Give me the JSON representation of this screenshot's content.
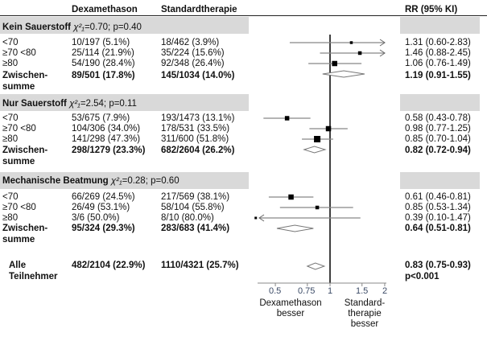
{
  "header": {
    "col_dex": "Dexamethason",
    "col_std": "Standardtherapie",
    "col_rr": "RR (95% KI)"
  },
  "groups": [
    {
      "title": "Kein Sauerstoff",
      "stat_chi": "χ²₁",
      "stat_rest": "=0.70; p=0.40",
      "rows": [
        {
          "label": "<70",
          "dex": "10/197 (5.1%)",
          "std": "18/462 (3.9%)",
          "rr": "1.31 (0.60-2.83)"
        },
        {
          "label": "≥70 <80",
          "dex": "25/114 (21.9%)",
          "std": "35/224 (15.6%)",
          "rr": "1.46 (0.88-2.45)"
        },
        {
          "label": "≥80",
          "dex": "54/190 (28.4%)",
          "std": "92/348 (26.4%)",
          "rr": "1.06 (0.76-1.49)"
        }
      ],
      "subtotal": {
        "label1": "Zwischen-",
        "label2": "summe",
        "dex": "89/501 (17.8%)",
        "std": "145/1034 (14.0%)",
        "rr": "1.19 (0.91-1.55)"
      }
    },
    {
      "title": "Nur Sauerstoff",
      "stat_chi": "χ²₁",
      "stat_rest": "=2.54; p=0.11",
      "rows": [
        {
          "label": "<70",
          "dex": "53/675 (7.9%)",
          "std": "193/1473 (13.1%)",
          "rr": "0.58 (0.43-0.78)"
        },
        {
          "label": "≥70 <80",
          "dex": "104/306 (34.0%)",
          "std": "178/531 (33.5%)",
          "rr": "0.98 (0.77-1.25)"
        },
        {
          "label": "≥80",
          "dex": "141/298 (47.3%)",
          "std": "311/600 (51.8%)",
          "rr": "0.85 (0.70-1.04)"
        }
      ],
      "subtotal": {
        "label1": "Zwischen-",
        "label2": "summe",
        "dex": "298/1279 (23.3%)",
        "std": "682/2604 (26.2%)",
        "rr": "0.82 (0.72-0.94)"
      }
    },
    {
      "title": "Mechanische Beatmung",
      "stat_chi": "χ²₁",
      "stat_rest": "=0.28; p=0.60",
      "rows": [
        {
          "label": "<70",
          "dex": "66/269 (24.5%)",
          "std": "217/569 (38.1%)",
          "rr": "0.61 (0.46-0.81)"
        },
        {
          "label": "≥70 <80",
          "dex": "26/49 (53.1%)",
          "std": "58/104 (55.8%)",
          "rr": "0.85 (0.53-1.34)"
        },
        {
          "label": "≥80",
          "dex": "3/6 (50.0%)",
          "std": "8/10 (80.0%)",
          "rr": "0.39 (0.10-1.47)"
        }
      ],
      "subtotal": {
        "label1": "Zwischen-",
        "label2": "summe",
        "dex": "95/324 (29.3%)",
        "std": "283/683 (41.4%)",
        "rr": "0.64 (0.51-0.81)"
      }
    }
  ],
  "overall": {
    "label1": "Alle",
    "label2": "Teilnehmer",
    "dex": "482/2104 (22.9%)",
    "std": "1110/4321 (25.7%)",
    "rr": "0.83 (0.75-0.93)",
    "p": "p<0.001"
  },
  "axis": {
    "ticks": [
      "0.5",
      "0.75",
      "1",
      "1.5",
      "2"
    ],
    "left_label": [
      "Dexamethason",
      "besser"
    ],
    "right_label": [
      "Standard-",
      "therapie",
      "besser"
    ]
  },
  "chart_data": {
    "type": "forest",
    "scale": "log",
    "xlim": [
      0.4,
      2.0
    ],
    "reference": 1,
    "xticks": [
      0.5,
      0.75,
      1,
      1.5,
      2
    ],
    "xlabel_left": "Dexamethason besser",
    "xlabel_right": "Standardtherapie besser",
    "series": [
      {
        "name": "Kein Sauerstoff <70",
        "rr": 1.31,
        "lo": 0.6,
        "hi": 2.83,
        "kind": "point",
        "weight": 0.3
      },
      {
        "name": "Kein Sauerstoff ≥70 <80",
        "rr": 1.46,
        "lo": 0.88,
        "hi": 2.45,
        "kind": "point",
        "weight": 0.5
      },
      {
        "name": "Kein Sauerstoff ≥80",
        "rr": 1.06,
        "lo": 0.76,
        "hi": 1.49,
        "kind": "point",
        "weight": 0.9
      },
      {
        "name": "Kein Sauerstoff Zwischensumme",
        "rr": 1.19,
        "lo": 0.91,
        "hi": 1.55,
        "kind": "diamond"
      },
      {
        "name": "Nur Sauerstoff <70",
        "rr": 0.58,
        "lo": 0.43,
        "hi": 0.78,
        "kind": "point",
        "weight": 0.7
      },
      {
        "name": "Nur Sauerstoff ≥70 <80",
        "rr": 0.98,
        "lo": 0.77,
        "hi": 1.25,
        "kind": "point",
        "weight": 0.9
      },
      {
        "name": "Nur Sauerstoff ≥80",
        "rr": 0.85,
        "lo": 0.7,
        "hi": 1.04,
        "kind": "point",
        "weight": 1.2
      },
      {
        "name": "Nur Sauerstoff Zwischensumme",
        "rr": 0.82,
        "lo": 0.72,
        "hi": 0.94,
        "kind": "diamond"
      },
      {
        "name": "Mechanische Beatmung <70",
        "rr": 0.61,
        "lo": 0.46,
        "hi": 0.81,
        "kind": "point",
        "weight": 0.9
      },
      {
        "name": "Mechanische Beatmung ≥70 <80",
        "rr": 0.85,
        "lo": 0.53,
        "hi": 1.34,
        "kind": "point",
        "weight": 0.5
      },
      {
        "name": "Mechanische Beatmung ≥80",
        "rr": 0.39,
        "lo": 0.1,
        "hi": 1.47,
        "kind": "point",
        "weight": 0.2
      },
      {
        "name": "Mechanische Beatmung Zwischensumme",
        "rr": 0.64,
        "lo": 0.51,
        "hi": 0.81,
        "kind": "diamond"
      },
      {
        "name": "Alle Teilnehmer",
        "rr": 0.83,
        "lo": 0.75,
        "hi": 0.93,
        "kind": "diamond"
      }
    ]
  }
}
